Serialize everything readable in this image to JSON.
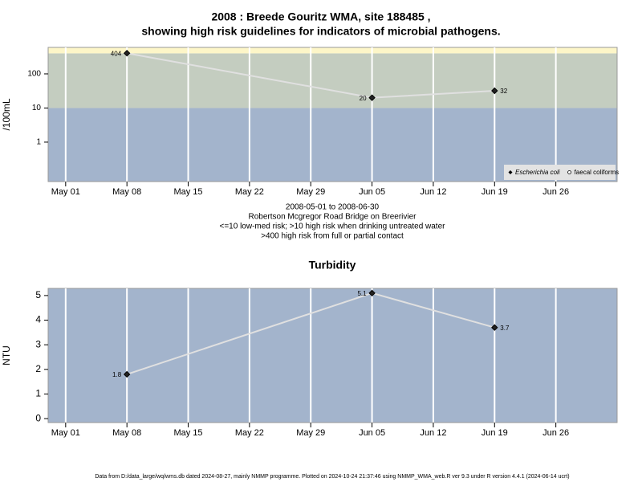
{
  "chart_data": [
    {
      "type": "line",
      "title": [
        "2008 : Breede Gouritz WMA, site 188485 ,",
        "showing high risk guidelines for indicators of microbial pathogens."
      ],
      "notes": [
        "2008-05-01 to 2008-06-30",
        "Robertson Mcgregor Road Bridge on Breerivier",
        "<=10 low-med risk; >10 high risk when drinking untreated water",
        ">400 high risk from full or partial contact"
      ],
      "ylabel": "/100mL",
      "log_y": true,
      "x": [
        "May 08",
        "Jun 05",
        "Jun 19"
      ],
      "xlim": [
        "Apr 29",
        "Jul 03"
      ],
      "xticks": [
        "May 01",
        "May 08",
        "May 15",
        "May 22",
        "May 29",
        "Jun 05",
        "Jun 12",
        "Jun 19",
        "Jun 26"
      ],
      "ylim": [
        0.07,
        597
      ],
      "yticks": [
        1,
        10,
        100
      ],
      "thresholds": [
        10,
        400
      ],
      "band_colors": [
        "#a3b4cc",
        "#c4cdc0",
        "#fdf6c8"
      ],
      "grid": true,
      "legend": "bottom-right",
      "series": [
        {
          "name": "Escherichia coli",
          "color": "#e0e0e0",
          "values": [
            404,
            20,
            32
          ]
        },
        {
          "name": "faecal coliforms",
          "color": "#e0e0e0",
          "values": [
            null,
            null,
            null
          ]
        }
      ]
    },
    {
      "type": "line",
      "title": "Turbidity",
      "ylabel": "NTU",
      "log_y": false,
      "x": [
        "May 08",
        "Jun 05",
        "Jun 19"
      ],
      "xlim": [
        "Apr 29",
        "Jul 03"
      ],
      "xticks": [
        "May 01",
        "May 08",
        "May 15",
        "May 22",
        "May 29",
        "Jun 05",
        "Jun 12",
        "Jun 19",
        "Jun 26"
      ],
      "ylim": [
        -0.16,
        5.29
      ],
      "yticks": [
        0,
        1,
        2,
        3,
        4,
        5
      ],
      "band_colors": [
        "#a3b4cc"
      ],
      "grid": true,
      "series": [
        {
          "name": "Turbidity",
          "color": "#e0e0e0",
          "values": [
            1.8,
            5.1,
            3.7
          ]
        }
      ]
    }
  ],
  "footer": "Data from D:/data_large/wq/wms.db dated 2024-08-27, mainly NMMP programme. Plotted on 2024-10-24 21:37:46 using NMMP_WMA_web.R ver 9.3 under R version 4.4.1 (2024-06-14 ucrt)"
}
